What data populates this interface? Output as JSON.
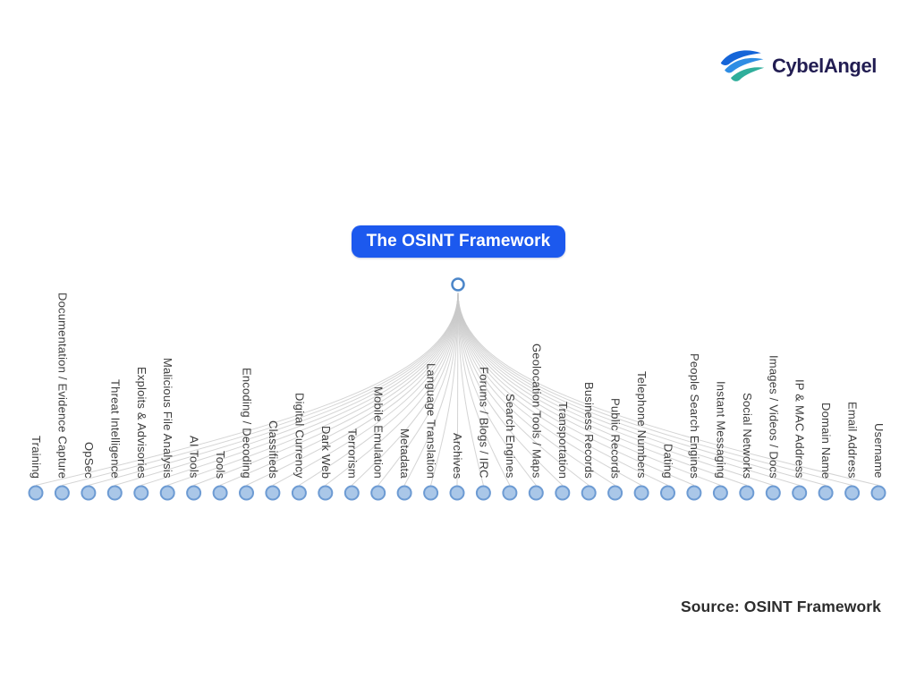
{
  "brand": {
    "name": "CybelAngel"
  },
  "diagram": {
    "title": "The OSINT Framework",
    "nodes": [
      "Training",
      "Documentation / Evidence Capture",
      "OpSec",
      "Threat Intelligence",
      "Exploits & Advisories",
      "Malicious File Analysis",
      "AI Tools",
      "Tools",
      "Encoding / Decoding",
      "Classifieds",
      "Digital Currency",
      "Dark Web",
      "Terrorism",
      "Mobile Emulation",
      "Metadata",
      "Language Translation",
      "Archives",
      "Forums / Blogs / IRC",
      "Search Engines",
      "Geolocation Tools / Maps",
      "Transportation",
      "Business Records",
      "Public Records",
      "Telephone Numbers",
      "Dating",
      "People Search Engines",
      "Instant Messaging",
      "Social Networks",
      "Images / Videos / Docs",
      "IP & MAC Address",
      "Domain Name",
      "Email Address",
      "Username"
    ]
  },
  "footer": {
    "source": "Source: OSINT Framework"
  },
  "colors": {
    "accent_blue": "#1c59ee",
    "node_fill": "#aac7e8",
    "node_border": "#6d9bd3",
    "root_fill": "#ffffff",
    "root_border": "#4c86c9",
    "link": "#c9c9c9",
    "label_text": "#3c3c3c",
    "brand_navy": "#221d52",
    "logo_blue_dark": "#1565d8",
    "logo_blue_light": "#2f8de4",
    "logo_teal": "#2fae9b"
  }
}
